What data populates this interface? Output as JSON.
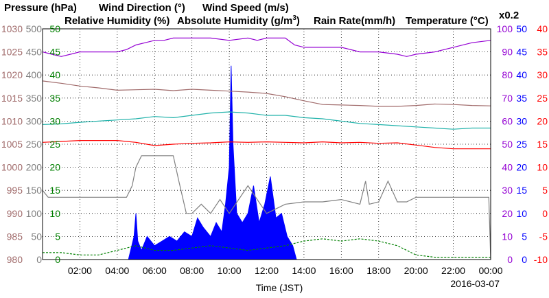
{
  "colors": {
    "pressure": "#a06a6a",
    "wind_direction": "#808080",
    "wind_speed": "#008000",
    "rel_humidity": "#9400d3",
    "abs_humidity": "#20b2aa",
    "rain_rate": "#0000ff",
    "temperature": "#ff0000",
    "grid": "#000000"
  },
  "chart_data": {
    "type": "line",
    "legend": {
      "pressure": "Pressure (hPa)",
      "wind_direction": "Wind Direction (°)",
      "wind_speed": "Wind Speed (m/s)",
      "rel_humidity": "Relative Humidity (%)",
      "abs_humidity_text": "Absolute Humidity (g/m",
      "abs_humidity_sup": "3",
      "abs_humidity_close": ")",
      "rain_rate": "Rain Rate(mm/h)",
      "temperature": "Temperature (°C)",
      "abs_scale": "x0.2"
    },
    "xlabel": "Time (JST)",
    "date": "2016-03-07",
    "xticks": [
      "02:00",
      "04:00",
      "06:00",
      "08:00",
      "10:00",
      "12:00",
      "14:00",
      "16:00",
      "18:00",
      "20:00",
      "22:00",
      "00:00"
    ],
    "xlim_hours": [
      0,
      24
    ],
    "grid": true,
    "axes": {
      "pressure": {
        "ticks": [
          "1030",
          "1025",
          "1020",
          "1015",
          "1010",
          "1005",
          "1000",
          "995",
          "990",
          "985",
          "980"
        ],
        "ylim": [
          980,
          1030
        ]
      },
      "wind_direction": {
        "ticks": [
          "500",
          "450",
          "400",
          "350",
          "300",
          "250",
          "200",
          "150",
          "100",
          "50",
          "0"
        ],
        "ylim": [
          0,
          500
        ]
      },
      "wind_speed": {
        "ticks": [
          "50",
          "45",
          "40",
          "35",
          "30",
          "25",
          "20",
          "15",
          "10",
          "5",
          "0"
        ],
        "ylim": [
          0,
          50
        ]
      },
      "rel_humidity": {
        "ticks": [
          "100",
          "90",
          "80",
          "70",
          "60",
          "50",
          "40",
          "30",
          "20",
          "10",
          "0"
        ],
        "ylim": [
          0,
          100
        ]
      },
      "rain_rate": {
        "ticks": [
          "50",
          "45",
          "40",
          "35",
          "30",
          "25",
          "20",
          "15",
          "10",
          "5",
          "0"
        ],
        "ylim": [
          0,
          50
        ]
      },
      "temperature": {
        "ticks": [
          "40",
          "35",
          "30",
          "25",
          "20",
          "15",
          "10",
          "5",
          "0",
          "-5",
          "-10"
        ],
        "ylim": [
          -10,
          40
        ]
      }
    },
    "series": [
      {
        "name": "Relative Humidity (%)",
        "key": "rel_humidity",
        "axis": "rel_humidity",
        "x": [
          0,
          0.5,
          1,
          1.5,
          2,
          3,
          4,
          4.5,
          5,
          5.5,
          6,
          6.5,
          7,
          8,
          9,
          10,
          11,
          11.5,
          12,
          13,
          13.5,
          14,
          15,
          16,
          17,
          18,
          19,
          19.5,
          20,
          21,
          22,
          23,
          24
        ],
        "y": [
          90,
          89,
          88,
          89,
          90,
          90,
          90,
          91,
          93,
          94,
          95,
          95,
          96,
          96,
          96,
          95,
          96,
          95,
          96,
          96,
          93,
          92,
          92,
          92,
          90,
          90,
          89,
          88,
          89,
          90,
          92,
          94,
          95
        ]
      },
      {
        "name": "Pressure (hPa)",
        "key": "pressure",
        "axis": "pressure",
        "x": [
          0,
          1,
          2,
          3,
          4,
          5,
          6,
          7,
          8,
          9,
          10,
          11,
          12,
          13,
          14,
          15,
          16,
          17,
          18,
          19,
          20,
          21,
          22,
          23,
          24
        ],
        "y": [
          1018.7,
          1018.2,
          1017.6,
          1017.2,
          1016.7,
          1016.8,
          1016.9,
          1016.6,
          1016.9,
          1016.7,
          1016.5,
          1016.3,
          1016.0,
          1015.3,
          1014.4,
          1013.6,
          1013.5,
          1013.4,
          1013.2,
          1013.2,
          1013.4,
          1013.7,
          1013.6,
          1013.4,
          1013.3
        ]
      },
      {
        "name": "Absolute Humidity (g/m3)",
        "key": "abs_humidity",
        "axis": "rel_humidity",
        "x": [
          0,
          1,
          2,
          3,
          4,
          5,
          6,
          7,
          8,
          9,
          10,
          11,
          12,
          13,
          14,
          15,
          16,
          17,
          18,
          19,
          20,
          21,
          22,
          23,
          24
        ],
        "y": [
          58.5,
          58.8,
          59.5,
          60.0,
          60.5,
          61.0,
          62.0,
          61.5,
          62.5,
          63.5,
          64.0,
          63.5,
          62.5,
          62.5,
          61.5,
          61.0,
          60.0,
          59.0,
          58.5,
          58.0,
          57.5,
          57.0,
          56.5,
          57.0,
          57.0
        ]
      },
      {
        "name": "Temperature (°C)",
        "key": "temperature",
        "axis": "temperature",
        "x": [
          0,
          1,
          2,
          3,
          4,
          5,
          6,
          7,
          8,
          9,
          10,
          11,
          12,
          13,
          14,
          15,
          16,
          17,
          18,
          19,
          20,
          21,
          22,
          23,
          24
        ],
        "y": [
          15.4,
          15.6,
          15.8,
          15.8,
          15.8,
          15.4,
          14.7,
          15.0,
          15.2,
          15.3,
          15.5,
          15.4,
          15.5,
          15.4,
          15.3,
          15.5,
          15.3,
          15.4,
          15.2,
          15.3,
          14.8,
          14.3,
          14.0,
          14.0,
          14.0
        ]
      },
      {
        "name": "Wind Direction (°)",
        "key": "wind_direction",
        "axis": "wind_direction",
        "x": [
          0,
          0.3,
          0.5,
          1,
          2,
          3,
          4,
          4.5,
          4.8,
          5.0,
          5.3,
          6,
          7,
          7.3,
          7.7,
          8,
          8.5,
          9,
          9.5,
          10,
          11,
          12,
          13,
          14,
          15,
          16,
          17,
          17.3,
          17.5,
          18,
          18.5,
          19,
          19.5,
          20,
          21,
          22,
          23,
          23.9,
          24
        ],
        "y": [
          150,
          135,
          135,
          135,
          135,
          135,
          135,
          135,
          160,
          200,
          225,
          225,
          225,
          170,
          100,
          100,
          120,
          100,
          130,
          100,
          160,
          100,
          120,
          125,
          125,
          130,
          120,
          170,
          120,
          125,
          170,
          125,
          125,
          135,
          135,
          135,
          135,
          135,
          0
        ]
      },
      {
        "name": "Wind Speed (m/s)",
        "key": "wind_speed",
        "axis": "wind_speed",
        "x": [
          0,
          1,
          2,
          3,
          4,
          5,
          6,
          7,
          8,
          9,
          10,
          11,
          12,
          13,
          14,
          15,
          16,
          17,
          18,
          19,
          20,
          21,
          22,
          23,
          24
        ],
        "y": [
          1.5,
          1.5,
          1.0,
          1.0,
          2.0,
          3.0,
          2.0,
          2.0,
          2.5,
          3.0,
          2.5,
          2.0,
          2.5,
          3.0,
          4.0,
          4.5,
          4.0,
          4.5,
          4.0,
          3.0,
          1.0,
          0.5,
          0.5,
          0.5,
          0.5
        ]
      },
      {
        "name": "Rain Rate(mm/h)",
        "key": "rain_rate",
        "axis": "rain_rate",
        "x": [
          0,
          4.6,
          4.9,
          5.0,
          5.1,
          5.3,
          5.6,
          6.0,
          6.4,
          6.8,
          7.2,
          7.6,
          8.0,
          8.3,
          8.6,
          9.0,
          9.3,
          9.6,
          9.8,
          10.0,
          10.1,
          10.2,
          10.4,
          10.7,
          11.0,
          11.3,
          11.6,
          11.9,
          12.2,
          12.5,
          12.8,
          13.1,
          13.4,
          13.6,
          24
        ],
        "y": [
          0,
          0,
          5,
          10,
          4,
          2,
          5,
          3,
          4,
          5,
          4,
          6,
          5,
          9,
          7,
          5,
          8,
          6,
          12,
          20,
          42,
          25,
          10,
          8,
          10,
          16,
          8,
          12,
          18,
          9,
          10,
          5,
          3,
          0,
          0
        ]
      }
    ]
  }
}
